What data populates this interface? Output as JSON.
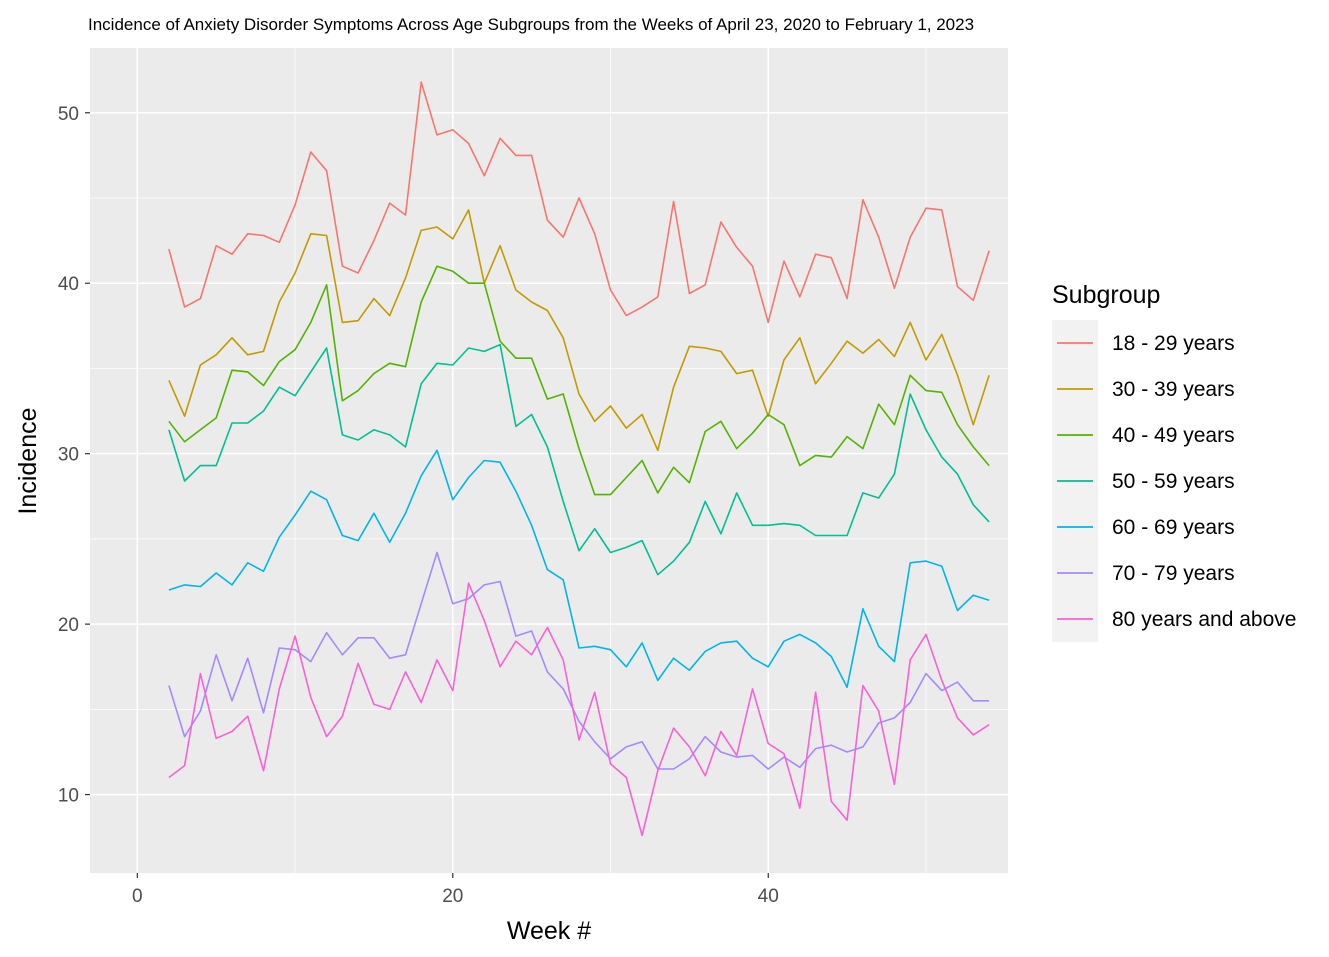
{
  "chart_data": {
    "type": "line",
    "title": "Incidence of Anxiety Disorder Symptoms Across Age Subgroups from the Weeks of April 23, 2020 to February 1, 2023",
    "xlabel": "Week #",
    "ylabel": "Incidence",
    "xlim": [
      -3,
      55.2
    ],
    "ylim": [
      5.4,
      53.8
    ],
    "x_ticks": [
      0,
      20,
      40
    ],
    "y_ticks": [
      10,
      20,
      30,
      40,
      50
    ],
    "x_minor_ticks": [
      10,
      30,
      50
    ],
    "y_minor_ticks": [
      15,
      25,
      35,
      45
    ],
    "grid": true,
    "legend": {
      "title": "Subgroup",
      "position": "right"
    },
    "x": [
      2,
      3,
      4,
      5,
      6,
      7,
      8,
      9,
      10,
      11,
      12,
      13,
      14,
      15,
      16,
      17,
      18,
      19,
      20,
      21,
      22,
      23,
      24,
      25,
      26,
      27,
      28,
      29,
      30,
      31,
      32,
      33,
      34,
      35,
      36,
      37,
      38,
      39,
      40,
      41,
      42,
      43,
      44,
      45,
      46,
      47,
      48,
      49,
      50,
      51,
      52,
      53,
      54
    ],
    "series": [
      {
        "name": "18 - 29 years",
        "color": "#F8766D",
        "values": [
          42.0,
          38.6,
          39.1,
          42.2,
          41.7,
          42.9,
          42.8,
          42.4,
          44.6,
          47.7,
          46.6,
          41.0,
          40.6,
          42.5,
          44.7,
          44.0,
          51.8,
          48.7,
          49.0,
          48.2,
          46.3,
          48.5,
          47.5,
          47.5,
          43.7,
          42.7,
          45.0,
          42.9,
          39.6,
          38.1,
          38.6,
          39.2,
          44.8,
          39.4,
          39.9,
          43.6,
          42.1,
          41.0,
          37.7,
          41.3,
          39.2,
          41.7,
          41.5,
          39.1,
          44.9,
          42.7,
          39.7,
          42.7,
          44.4,
          44.3,
          39.8,
          39.0,
          41.9
        ]
      },
      {
        "name": "30 - 39 years",
        "color": "#C49A00",
        "values": [
          34.3,
          32.2,
          35.2,
          35.8,
          36.8,
          35.8,
          36.0,
          38.9,
          40.6,
          42.9,
          42.8,
          37.7,
          37.8,
          39.1,
          38.1,
          40.3,
          43.1,
          43.3,
          42.6,
          44.3,
          40.0,
          42.2,
          39.6,
          38.9,
          38.4,
          36.8,
          33.5,
          31.9,
          32.8,
          31.5,
          32.3,
          30.2,
          33.9,
          36.3,
          36.2,
          36.0,
          34.7,
          34.9,
          32.2,
          35.5,
          36.8,
          34.1,
          35.3,
          36.6,
          35.9,
          36.7,
          35.7,
          37.7,
          35.5,
          37.0,
          34.6,
          31.7,
          34.6
        ]
      },
      {
        "name": "40 - 49 years",
        "color": "#53B400",
        "values": [
          31.9,
          30.7,
          31.4,
          32.1,
          34.9,
          34.8,
          34.0,
          35.4,
          36.1,
          37.7,
          39.9,
          33.1,
          33.7,
          34.7,
          35.3,
          35.1,
          38.9,
          41.0,
          40.7,
          40.0,
          40.0,
          36.6,
          35.6,
          35.6,
          33.2,
          33.5,
          30.3,
          27.6,
          27.6,
          28.6,
          29.6,
          27.7,
          29.2,
          28.3,
          31.3,
          31.9,
          30.3,
          31.2,
          32.3,
          31.7,
          29.3,
          29.9,
          29.8,
          31.0,
          30.3,
          32.9,
          31.7,
          34.6,
          33.7,
          33.6,
          31.7,
          30.4,
          29.3
        ]
      },
      {
        "name": "50 - 59 years",
        "color": "#00C094",
        "values": [
          31.4,
          28.4,
          29.3,
          29.3,
          31.8,
          31.8,
          32.5,
          33.9,
          33.4,
          34.8,
          36.2,
          31.1,
          30.8,
          31.4,
          31.1,
          30.4,
          34.1,
          35.3,
          35.2,
          36.2,
          36.0,
          36.4,
          31.6,
          32.3,
          30.4,
          27.2,
          24.3,
          25.6,
          24.2,
          24.5,
          24.9,
          22.9,
          23.7,
          24.8,
          27.2,
          25.3,
          27.7,
          25.8,
          25.8,
          25.9,
          25.8,
          25.2,
          25.2,
          25.2,
          27.7,
          27.4,
          28.8,
          33.5,
          31.4,
          29.8,
          28.8,
          27.0,
          26.0
        ]
      },
      {
        "name": "60 - 69 years",
        "color": "#00B6EB",
        "values": [
          22.0,
          22.3,
          22.2,
          23.0,
          22.3,
          23.6,
          23.1,
          25.1,
          26.4,
          27.8,
          27.3,
          25.2,
          24.9,
          26.5,
          24.8,
          26.5,
          28.7,
          30.2,
          27.3,
          28.6,
          29.6,
          29.5,
          27.8,
          25.8,
          23.2,
          22.6,
          18.6,
          18.7,
          18.5,
          17.5,
          18.9,
          16.7,
          18.0,
          17.3,
          18.4,
          18.9,
          19.0,
          18.0,
          17.5,
          19.0,
          19.4,
          18.9,
          18.1,
          16.3,
          20.9,
          18.7,
          17.8,
          23.6,
          23.7,
          23.4,
          20.8,
          21.7,
          21.4
        ]
      },
      {
        "name": "70 - 79 years",
        "color": "#A58AFF",
        "values": [
          16.4,
          13.4,
          14.9,
          18.2,
          15.5,
          18.0,
          14.8,
          18.6,
          18.5,
          17.8,
          19.5,
          18.2,
          19.2,
          19.2,
          18.0,
          18.2,
          21.2,
          24.2,
          21.2,
          21.5,
          22.3,
          22.5,
          19.3,
          19.6,
          17.2,
          16.2,
          14.3,
          13.1,
          12.1,
          12.8,
          13.1,
          11.5,
          11.5,
          12.1,
          13.4,
          12.5,
          12.2,
          12.3,
          11.5,
          12.2,
          11.6,
          12.7,
          12.9,
          12.5,
          12.8,
          14.2,
          14.5,
          15.4,
          17.1,
          16.1,
          16.6,
          15.5,
          15.5
        ]
      },
      {
        "name": "80 years and above",
        "color": "#FB61D7",
        "values": [
          11.0,
          11.7,
          17.1,
          13.3,
          13.7,
          14.6,
          11.4,
          16.2,
          19.3,
          15.7,
          13.4,
          14.6,
          17.7,
          15.3,
          15.0,
          17.2,
          15.4,
          17.9,
          16.1,
          22.4,
          20.2,
          17.5,
          19.0,
          18.2,
          19.8,
          17.9,
          13.2,
          16.0,
          11.8,
          11.0,
          7.6,
          11.4,
          13.9,
          12.8,
          11.1,
          13.7,
          12.3,
          16.2,
          13.0,
          12.4,
          9.2,
          16.0,
          9.6,
          8.5,
          16.4,
          14.9,
          10.6,
          17.9,
          19.4,
          16.7,
          14.5,
          13.5,
          14.1
        ]
      }
    ]
  }
}
